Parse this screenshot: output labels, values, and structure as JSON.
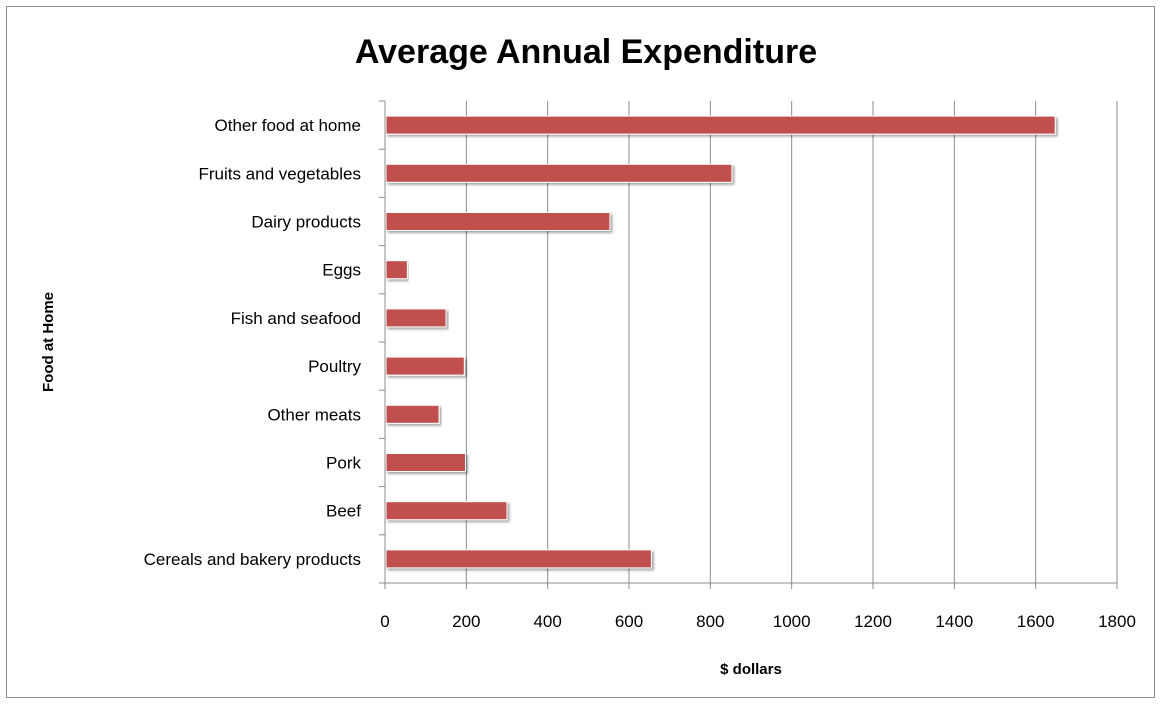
{
  "chart_data": {
    "type": "bar",
    "orientation": "horizontal",
    "title": "Average Annual Expenditure",
    "xlabel": "$ dollars",
    "ylabel": "Food at Home",
    "categories": [
      "Cereals and bakery products",
      "Beef",
      "Pork",
      "Other meats",
      "Poultry",
      "Fish and seafood",
      "Eggs",
      "Dairy products",
      "Fruits and vegetables",
      "Other food at home"
    ],
    "values": [
      655,
      300,
      198,
      133,
      195,
      150,
      55,
      553,
      853,
      1648
    ],
    "xlim": [
      0,
      1800
    ],
    "xticks": [
      "0",
      "200",
      "400",
      "600",
      "800",
      "1000",
      "1200",
      "1400",
      "1600",
      "1800"
    ],
    "grid": "vertical",
    "legend": "none",
    "bar_color": "#c0504d"
  }
}
